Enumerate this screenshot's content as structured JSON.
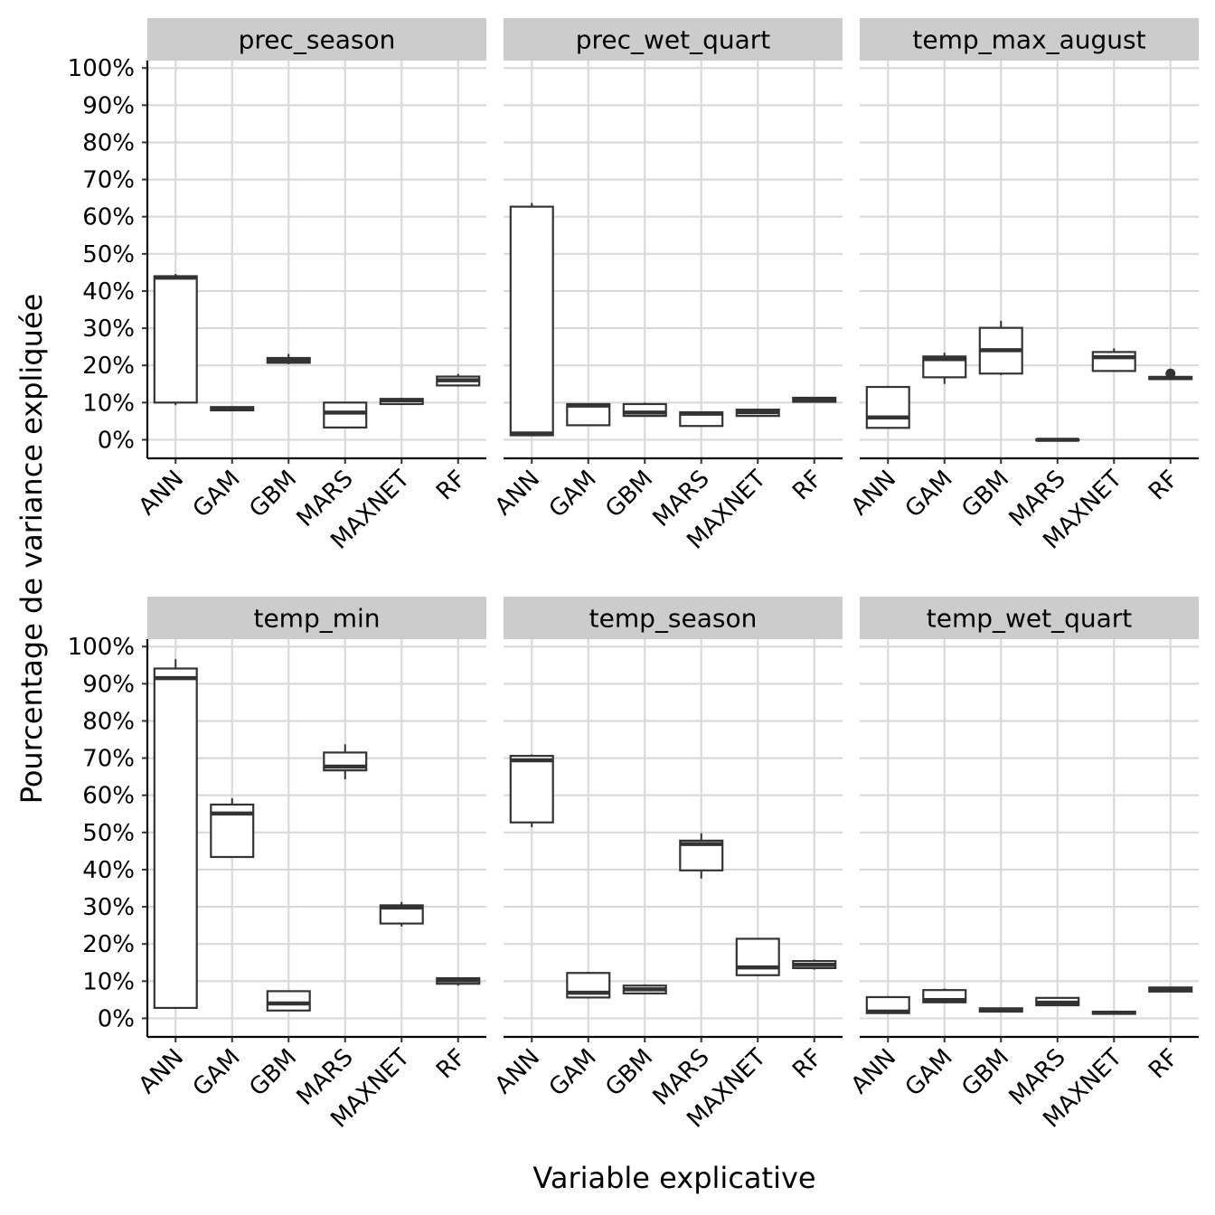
{
  "chart_data": {
    "type": "boxplot",
    "layout": "faceted 2x3",
    "xlabel": "Variable explicative",
    "ylabel": "Pourcentage de variance expliquée",
    "categories": [
      "ANN",
      "GAM",
      "GBM",
      "MARS",
      "MAXNET",
      "RF"
    ],
    "y_ticks": [
      "0%",
      "10%",
      "20%",
      "30%",
      "40%",
      "50%",
      "60%",
      "70%",
      "80%",
      "90%",
      "100%"
    ],
    "ylim": [
      -5,
      102
    ],
    "grid": true,
    "colors": {
      "panel_bg": "#ffffff",
      "grid": "#d9d9d9",
      "strip_bg": "#cccccc",
      "box_line": "#333333"
    },
    "facets": [
      {
        "title": "prec_season",
        "boxes": [
          {
            "x": "ANN",
            "min": 9.3,
            "q1": 10.0,
            "median": 43.6,
            "q3": 44.0,
            "max": 44.6
          },
          {
            "x": "GAM",
            "min": 7.8,
            "q1": 7.9,
            "median": 8.3,
            "q3": 8.8,
            "max": 8.9
          },
          {
            "x": "GBM",
            "min": 20.3,
            "q1": 20.7,
            "median": 21.4,
            "q3": 22.0,
            "max": 23.1
          },
          {
            "x": "MARS",
            "min": 3.3,
            "q1": 3.3,
            "median": 7.3,
            "q3": 10.0,
            "max": 10.0
          },
          {
            "x": "MAXNET",
            "min": 9.5,
            "q1": 9.6,
            "median": 10.6,
            "q3": 11.0,
            "max": 11.3
          },
          {
            "x": "RF",
            "min": 14.3,
            "q1": 14.6,
            "median": 16.0,
            "q3": 17.0,
            "max": 17.7
          }
        ]
      },
      {
        "title": "prec_wet_quart",
        "boxes": [
          {
            "x": "ANN",
            "min": 1.0,
            "q1": 1.2,
            "median": 1.7,
            "q3": 62.7,
            "max": 63.7
          },
          {
            "x": "GAM",
            "min": 3.8,
            "q1": 3.9,
            "median": 9.2,
            "q3": 9.6,
            "max": 9.8
          },
          {
            "x": "GBM",
            "min": 6.2,
            "q1": 6.4,
            "median": 7.3,
            "q3": 9.6,
            "max": 10.0
          },
          {
            "x": "MARS",
            "min": 3.6,
            "q1": 3.7,
            "median": 7.0,
            "q3": 7.4,
            "max": 7.5
          },
          {
            "x": "MAXNET",
            "min": 6.2,
            "q1": 6.4,
            "median": 7.4,
            "q3": 8.1,
            "max": 8.3
          },
          {
            "x": "RF",
            "min": 10.0,
            "q1": 10.2,
            "median": 10.8,
            "q3": 11.3,
            "max": 11.5
          }
        ]
      },
      {
        "title": "temp_max_august",
        "boxes": [
          {
            "x": "ANN",
            "min": 3.0,
            "q1": 3.2,
            "median": 6.0,
            "q3": 14.2,
            "max": 14.5
          },
          {
            "x": "GAM",
            "min": 15.0,
            "q1": 16.8,
            "median": 21.7,
            "q3": 22.4,
            "max": 23.4
          },
          {
            "x": "GBM",
            "min": 17.4,
            "q1": 17.8,
            "median": 24.1,
            "q3": 30.1,
            "max": 32.0
          },
          {
            "x": "MARS",
            "min": -0.2,
            "q1": -0.1,
            "median": 0.0,
            "q3": 0.1,
            "max": 0.2
          },
          {
            "x": "MAXNET",
            "min": 18.3,
            "q1": 18.5,
            "median": 22.2,
            "q3": 23.6,
            "max": 24.6
          },
          {
            "x": "RF",
            "min": 16.2,
            "q1": 16.3,
            "median": 16.6,
            "q3": 16.9,
            "max": 17.0,
            "outliers": [
              17.8
            ]
          }
        ]
      },
      {
        "title": "temp_min",
        "boxes": [
          {
            "x": "ANN",
            "min": 2.7,
            "q1": 2.8,
            "median": 91.5,
            "q3": 94.1,
            "max": 96.6
          },
          {
            "x": "GAM",
            "min": 43.3,
            "q1": 43.4,
            "median": 55.1,
            "q3": 57.5,
            "max": 59.2
          },
          {
            "x": "GBM",
            "min": 2.0,
            "q1": 2.1,
            "median": 4.0,
            "q3": 7.3,
            "max": 7.4
          },
          {
            "x": "MARS",
            "min": 64.3,
            "q1": 66.7,
            "median": 67.7,
            "q3": 71.5,
            "max": 73.7
          },
          {
            "x": "MAXNET",
            "min": 24.7,
            "q1": 25.5,
            "median": 29.8,
            "q3": 30.4,
            "max": 31.3
          },
          {
            "x": "RF",
            "min": 8.8,
            "q1": 9.3,
            "median": 10.2,
            "q3": 10.8,
            "max": 11.0
          }
        ]
      },
      {
        "title": "temp_season",
        "boxes": [
          {
            "x": "ANN",
            "min": 51.4,
            "q1": 52.7,
            "median": 69.4,
            "q3": 70.6,
            "max": 71.0
          },
          {
            "x": "GAM",
            "min": 5.4,
            "q1": 5.6,
            "median": 6.9,
            "q3": 12.2,
            "max": 12.5
          },
          {
            "x": "GBM",
            "min": 6.4,
            "q1": 6.7,
            "median": 7.8,
            "q3": 8.8,
            "max": 9.1
          },
          {
            "x": "MARS",
            "min": 37.6,
            "q1": 39.8,
            "median": 46.9,
            "q3": 47.8,
            "max": 49.8
          },
          {
            "x": "MAXNET",
            "min": 11.3,
            "q1": 11.6,
            "median": 13.7,
            "q3": 21.4,
            "max": 21.5
          },
          {
            "x": "RF",
            "min": 13.1,
            "q1": 13.5,
            "median": 14.4,
            "q3": 15.4,
            "max": 15.8
          }
        ]
      },
      {
        "title": "temp_wet_quart",
        "boxes": [
          {
            "x": "ANN",
            "min": 1.2,
            "q1": 1.4,
            "median": 1.8,
            "q3": 5.7,
            "max": 6.0
          },
          {
            "x": "GAM",
            "min": 4.2,
            "q1": 4.3,
            "median": 4.9,
            "q3": 7.6,
            "max": 8.0
          },
          {
            "x": "GBM",
            "min": 1.7,
            "q1": 1.8,
            "median": 2.1,
            "q3": 2.7,
            "max": 2.8
          },
          {
            "x": "MARS",
            "min": 3.3,
            "q1": 3.5,
            "median": 4.2,
            "q3": 5.5,
            "max": 5.6
          },
          {
            "x": "MAXNET",
            "min": 1.1,
            "q1": 1.2,
            "median": 1.5,
            "q3": 1.8,
            "max": 1.9
          },
          {
            "x": "RF",
            "min": 7.0,
            "q1": 7.2,
            "median": 7.8,
            "q3": 8.3,
            "max": 8.5
          }
        ]
      }
    ]
  }
}
